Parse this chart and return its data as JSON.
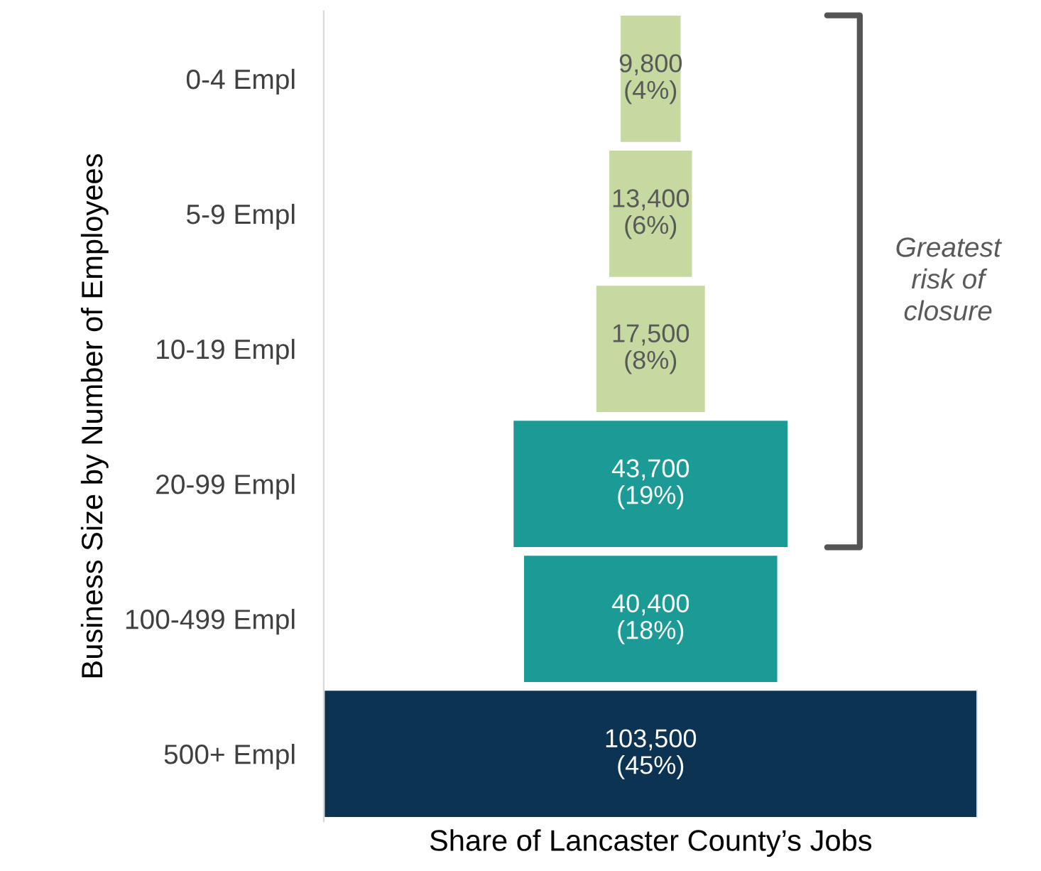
{
  "chart_data": {
    "type": "other",
    "xlabel": "Share of Lancaster County’s Jobs",
    "ylabel": "Business Size by Number of Employees",
    "categories": [
      "0-4 Empl",
      "5-9 Empl",
      "10-19 Empl",
      "20-99 Empl",
      "100-499 Empl",
      "500+ Empl"
    ],
    "values": [
      9800,
      13400,
      17500,
      43700,
      40400,
      103500
    ],
    "value_labels": [
      "9,800\n(4%)",
      "13,400\n(6%)",
      "17,500\n(8%)",
      "43,700\n(19%)",
      "40,400\n(18%)",
      "103,500\n(45%)"
    ],
    "colors": [
      "#c5d9a0",
      "#c5d9a0",
      "#c5d9a0",
      "#1b9a96",
      "#1b9a96",
      "#0d3353"
    ],
    "annotations": [
      "Greatest\nrisk of\nclosure"
    ]
  }
}
